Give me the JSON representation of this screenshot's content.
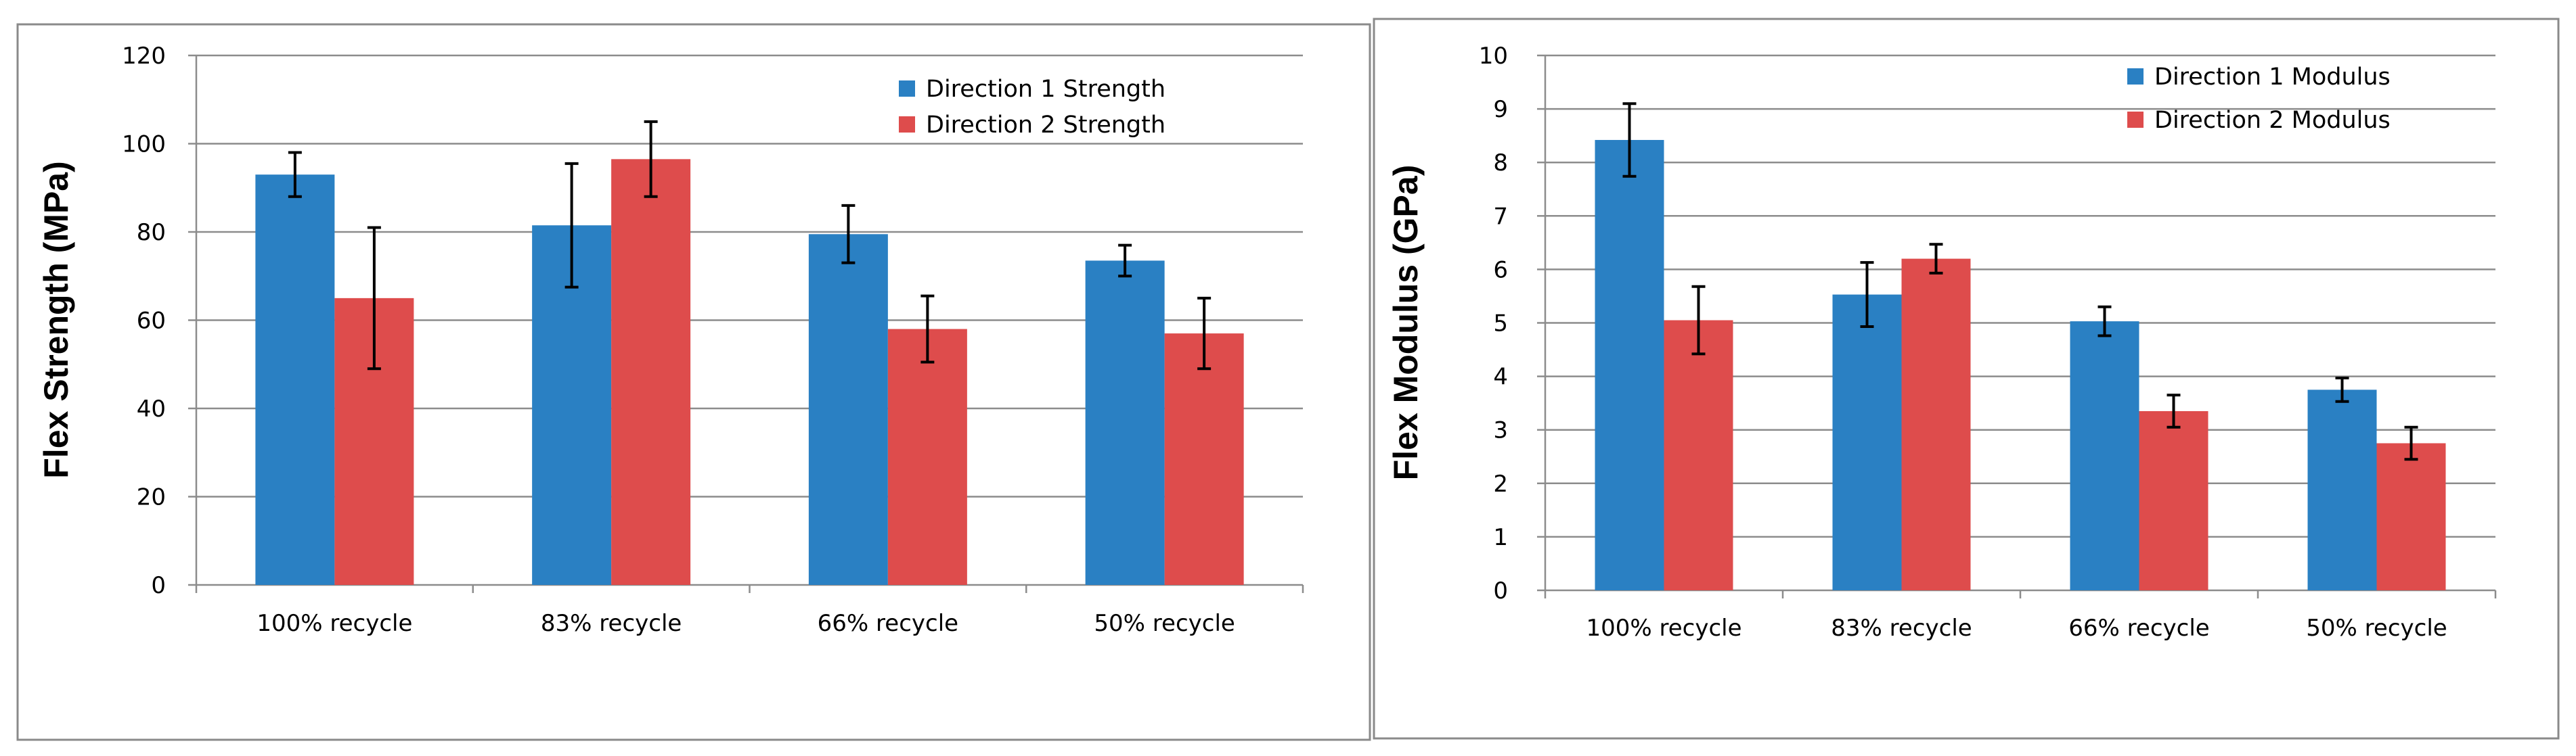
{
  "colors": {
    "direction1": "#2A80C3",
    "direction2": "#DE4C4C",
    "gridline": "#8C8C8C",
    "frame": "#8A8A8A",
    "error_bar": "#000000"
  },
  "chart_data": [
    {
      "type": "bar",
      "title": "",
      "xlabel": "",
      "ylabel": "Flex Strength (MPa)",
      "ylim": [
        0,
        120
      ],
      "yticks": [
        "0",
        "20",
        "40",
        "60",
        "80",
        "100",
        "120"
      ],
      "grid": true,
      "legend_position": "top-right",
      "categories": [
        "100% recycle",
        "83% recycle",
        "66% recycle",
        "50% recycle"
      ],
      "series": [
        {
          "name": "Direction 1 Strength",
          "values": [
            93,
            81.5,
            79.5,
            73.5
          ],
          "error": [
            5,
            14,
            6.5,
            3.5
          ]
        },
        {
          "name": "Direction 2 Strength",
          "values": [
            65,
            96.5,
            58,
            57
          ],
          "error": [
            16,
            8.5,
            7.5,
            8
          ]
        }
      ]
    },
    {
      "type": "bar",
      "title": "",
      "xlabel": "",
      "ylabel": "Flex Modulus (GPa)",
      "ylim": [
        0,
        10
      ],
      "yticks": [
        "0",
        "1",
        "2",
        "3",
        "4",
        "5",
        "6",
        "7",
        "8",
        "9",
        "10"
      ],
      "grid": true,
      "legend_position": "top-right",
      "categories": [
        "100% recycle",
        "83% recycle",
        "66% recycle",
        "50% recycle"
      ],
      "series": [
        {
          "name": "Direction 1 Modulus",
          "values": [
            8.42,
            5.53,
            5.03,
            3.75
          ],
          "error": [
            0.68,
            0.6,
            0.27,
            0.22
          ]
        },
        {
          "name": "Direction 2 Modulus",
          "values": [
            5.05,
            6.2,
            3.35,
            2.75
          ],
          "error": [
            0.63,
            0.27,
            0.3,
            0.3
          ]
        }
      ]
    }
  ]
}
